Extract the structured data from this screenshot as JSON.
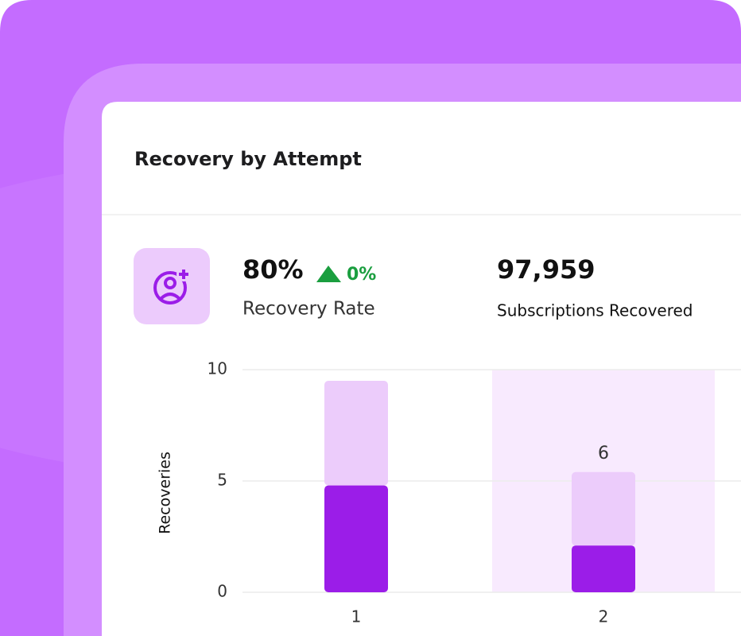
{
  "header": {
    "title": "Recovery by Attempt"
  },
  "stats": [
    {
      "value": "80%",
      "change": "0%",
      "label": "Recovery Rate"
    },
    {
      "value": "97,959",
      "label": "Subscriptions Recovered"
    }
  ],
  "chart_data": {
    "type": "stacked-bar",
    "y_label": "Recoveries",
    "categories": [
      "1",
      "2"
    ],
    "series": [
      {
        "color": "#9b1de8",
        "values": [
          4.8,
          2.1
        ]
      },
      {
        "color": "#ecccfb",
        "values": [
          4.7,
          3.3
        ]
      }
    ],
    "ylim": [
      0,
      10
    ],
    "yticks": [
      0,
      5,
      10
    ],
    "grid": true,
    "highlighted": "2",
    "highlight_color": "#f8eafe",
    "annotation": "6"
  }
}
